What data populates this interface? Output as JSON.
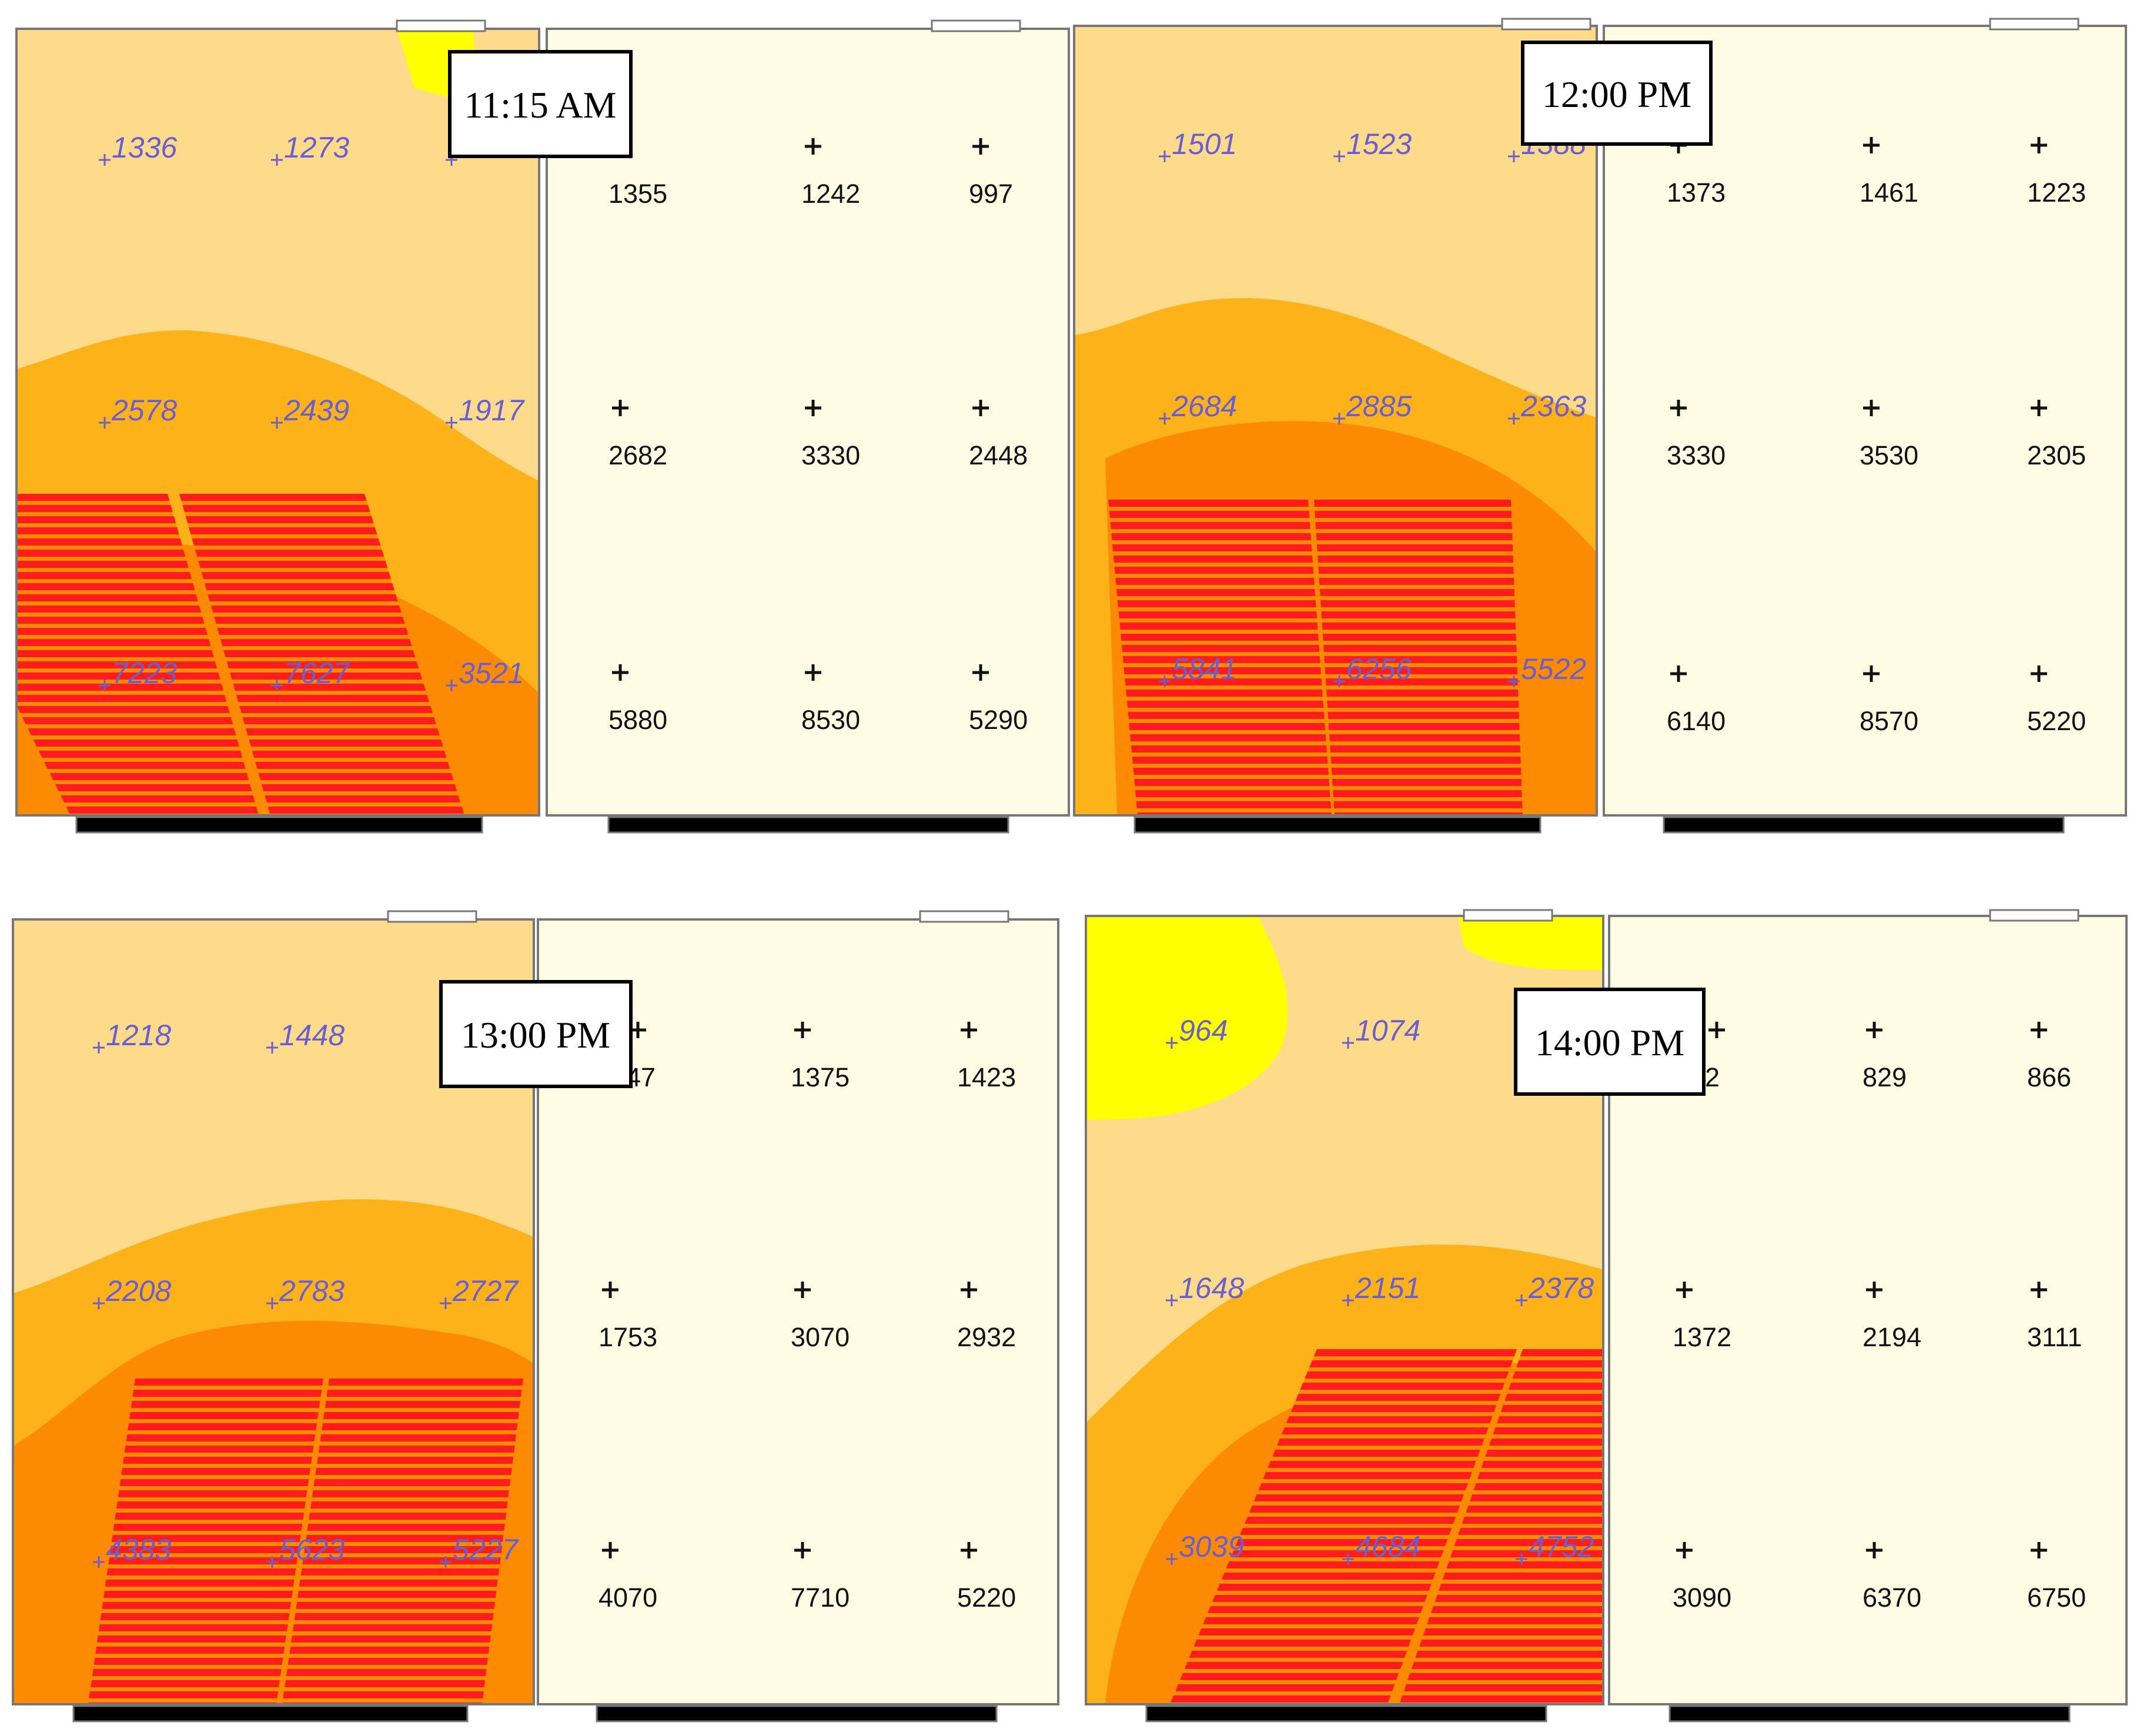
{
  "colors": {
    "lowest": "#ffff00",
    "low": "#fedb8b",
    "medium": "#fdb219",
    "high": "#fd8a03",
    "highest": "#fe1c1c",
    "measured_background": "#fffce4",
    "simulated_label": "#6a5fd0",
    "measured_label": "#111111"
  },
  "panels": [
    {
      "time": "11:15 AM",
      "simulated": [
        "1336",
        "1273",
        "",
        "2578",
        "2439",
        "1917",
        "7223",
        "7627",
        "3521"
      ],
      "measured": [
        "1355",
        "1242",
        "997",
        "2682",
        "3330",
        "2448",
        "5880",
        "8530",
        "5290"
      ]
    },
    {
      "time": "12:00 PM",
      "simulated": [
        "1501",
        "1523",
        "1388",
        "2684",
        "2885",
        "2363",
        "5841",
        "6256",
        "5522"
      ],
      "measured": [
        "1373",
        "1461",
        "1223",
        "3330",
        "3530",
        "2305",
        "6140",
        "8570",
        "5220"
      ]
    },
    {
      "time": "13:00 PM",
      "simulated": [
        "1218",
        "1448",
        "",
        "2208",
        "2783",
        "2727",
        "4383",
        "5623",
        "5227"
      ],
      "measured": [
        "47",
        "1375",
        "1423",
        "1753",
        "3070",
        "2932",
        "4070",
        "7710",
        "5220"
      ]
    },
    {
      "time": "14:00 PM",
      "simulated": [
        "964",
        "1074",
        "",
        "1648",
        "2151",
        "2378",
        "3039",
        "4684",
        "4752"
      ],
      "measured": [
        "2",
        "829",
        "866",
        "1372",
        "2194",
        "3111",
        "3090",
        "6370",
        "6750"
      ]
    }
  ]
}
